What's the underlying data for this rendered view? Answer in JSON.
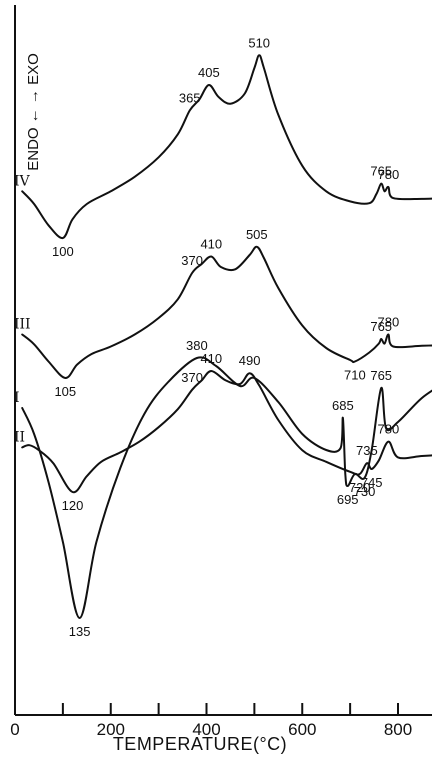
{
  "chart_data": {
    "type": "line",
    "xlabel": "TEMPERATURE(°C)",
    "ylabel": "ENDO ← → EXO",
    "xlim": [
      0,
      900
    ],
    "xticks": [
      0,
      200,
      400,
      600,
      800
    ],
    "xtick_minor": [
      0,
      100,
      200,
      300,
      400,
      500,
      600,
      700,
      800,
      900
    ],
    "grid": false,
    "series": [
      {
        "name": "IV",
        "annotations": [
          100,
          365,
          405,
          510,
          765,
          780
        ],
        "x": [
          15,
          40,
          70,
          100,
          120,
          150,
          200,
          250,
          300,
          340,
          365,
          385,
          405,
          425,
          450,
          480,
          500,
          510,
          520,
          550,
          600,
          650,
          700,
          740,
          755,
          765,
          772,
          780,
          790,
          850,
          900
        ],
        "y": [
          0.55,
          0.4,
          0.15,
          0.0,
          0.22,
          0.4,
          0.55,
          0.72,
          0.95,
          1.22,
          1.5,
          1.63,
          1.8,
          1.66,
          1.58,
          1.7,
          2.0,
          2.15,
          2.0,
          1.45,
          0.85,
          0.55,
          0.43,
          0.41,
          0.52,
          0.64,
          0.55,
          0.6,
          0.47,
          0.46,
          0.47
        ]
      },
      {
        "name": "III",
        "annotations": [
          105,
          370,
          410,
          505,
          710,
          765,
          780
        ],
        "x": [
          15,
          40,
          70,
          105,
          130,
          160,
          200,
          250,
          300,
          340,
          370,
          390,
          410,
          430,
          460,
          490,
          505,
          520,
          550,
          600,
          650,
          700,
          710,
          740,
          760,
          765,
          772,
          780,
          790,
          850,
          900
        ],
        "y": [
          0.58,
          0.45,
          0.22,
          0.0,
          0.18,
          0.32,
          0.42,
          0.58,
          0.8,
          1.05,
          1.4,
          1.52,
          1.62,
          1.48,
          1.45,
          1.64,
          1.75,
          1.6,
          1.2,
          0.7,
          0.4,
          0.24,
          0.22,
          0.34,
          0.46,
          0.52,
          0.46,
          0.58,
          0.42,
          0.43,
          0.44
        ]
      },
      {
        "name": "II",
        "annotations": [
          120,
          370,
          410,
          490,
          720,
          735,
          745,
          780
        ],
        "x": [
          15,
          30,
          50,
          80,
          120,
          150,
          180,
          220,
          260,
          300,
          340,
          370,
          390,
          410,
          440,
          470,
          490,
          510,
          550,
          600,
          650,
          700,
          720,
          735,
          745,
          760,
          780,
          800,
          850,
          900
        ],
        "y": [
          0.62,
          0.65,
          0.58,
          0.4,
          0.0,
          0.22,
          0.42,
          0.55,
          0.7,
          0.9,
          1.15,
          1.42,
          1.55,
          1.68,
          1.55,
          1.5,
          1.65,
          1.48,
          1.0,
          0.58,
          0.42,
          0.28,
          0.25,
          0.4,
          0.32,
          0.44,
          0.7,
          0.48,
          0.5,
          0.52
        ]
      },
      {
        "name": "I",
        "annotations": [
          135,
          380,
          685,
          695,
          730,
          765
        ],
        "x": [
          15,
          40,
          70,
          100,
          135,
          170,
          220,
          270,
          320,
          380,
          420,
          470,
          500,
          550,
          600,
          650,
          680,
          685,
          690,
          695,
          710,
          730,
          745,
          765,
          775,
          800,
          850,
          900
        ],
        "y": [
          1.05,
          0.92,
          0.68,
          0.38,
          0.0,
          0.38,
          0.75,
          1.02,
          1.18,
          1.3,
          1.26,
          1.16,
          1.2,
          1.08,
          0.92,
          0.84,
          0.85,
          1.0,
          0.72,
          0.66,
          0.72,
          0.7,
          0.84,
          1.15,
          0.95,
          0.98,
          1.1,
          1.18
        ]
      }
    ]
  },
  "labels": {
    "curves": [
      "IV",
      "III",
      "II",
      "I"
    ],
    "exo_vertical": "ENDO → EXO"
  }
}
